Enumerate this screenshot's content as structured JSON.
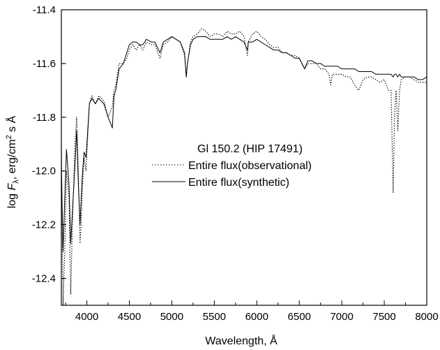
{
  "chart_data": {
    "type": "line",
    "title": "",
    "xlabel": "Wavelength, Å",
    "ylabel_parts": [
      "log ",
      "F",
      "λ",
      ", erg/cm",
      "2",
      " s Å"
    ],
    "xlim": [
      3700,
      8000
    ],
    "ylim": [
      -12.5,
      -11.4
    ],
    "x_ticks": [
      4000,
      4500,
      5000,
      5500,
      6000,
      6500,
      7000,
      7500,
      8000
    ],
    "y_ticks": [
      -11.4,
      -11.6,
      -11.8,
      -12.0,
      -12.2,
      -12.4
    ],
    "x_tick_labels": [
      "4000",
      "4500",
      "5000",
      "5500",
      "6000",
      "6500",
      "7000",
      "7500",
      "8000"
    ],
    "y_tick_labels": [
      "-11.4",
      "-11.6",
      "-11.8",
      "-12.0",
      "-12.2",
      "-12.4"
    ],
    "legend": {
      "heading": "Gl 150.2 (HIP 17491)",
      "placement": "center"
    },
    "series": [
      {
        "name": "Entire flux(observational)",
        "style": "dotted",
        "x": [
          3700,
          3720,
          3740,
          3760,
          3790,
          3810,
          3830,
          3860,
          3880,
          3900,
          3920,
          3933,
          3950,
          3968,
          3990,
          4030,
          4060,
          4100,
          4140,
          4200,
          4250,
          4300,
          4320,
          4340,
          4380,
          4430,
          4470,
          4500,
          4540,
          4580,
          4620,
          4660,
          4700,
          4760,
          4800,
          4861,
          4900,
          4950,
          5000,
          5050,
          5100,
          5150,
          5170,
          5184,
          5220,
          5250,
          5300,
          5350,
          5400,
          5450,
          5500,
          5550,
          5600,
          5650,
          5700,
          5750,
          5800,
          5850,
          5890,
          5900,
          5950,
          6000,
          6050,
          6100,
          6150,
          6200,
          6250,
          6300,
          6350,
          6400,
          6450,
          6500,
          6563,
          6600,
          6650,
          6700,
          6750,
          6800,
          6850,
          6870,
          6890,
          6950,
          7000,
          7050,
          7100,
          7150,
          7200,
          7250,
          7300,
          7350,
          7400,
          7450,
          7500,
          7550,
          7580,
          7605,
          7620,
          7640,
          7660,
          7680,
          7700,
          7750,
          7800,
          7850,
          7900,
          7950,
          8000
        ],
        "y": [
          -11.9,
          -12.5,
          -12.3,
          -12.0,
          -12.1,
          -12.46,
          -12.2,
          -11.9,
          -11.8,
          -12.0,
          -12.27,
          -12.2,
          -12.05,
          -11.95,
          -12.0,
          -11.75,
          -11.72,
          -11.75,
          -11.72,
          -11.74,
          -11.8,
          -11.76,
          -11.7,
          -11.68,
          -11.6,
          -11.6,
          -11.58,
          -11.55,
          -11.53,
          -11.55,
          -11.53,
          -11.55,
          -11.52,
          -11.53,
          -11.53,
          -11.58,
          -11.53,
          -11.52,
          -11.5,
          -11.51,
          -11.52,
          -11.57,
          -11.65,
          -11.6,
          -11.52,
          -11.5,
          -11.49,
          -11.47,
          -11.48,
          -11.5,
          -11.49,
          -11.49,
          -11.5,
          -11.48,
          -11.49,
          -11.49,
          -11.48,
          -11.5,
          -11.57,
          -11.52,
          -11.49,
          -11.48,
          -11.5,
          -11.51,
          -11.53,
          -11.54,
          -11.54,
          -11.56,
          -11.56,
          -11.57,
          -11.57,
          -11.58,
          -11.62,
          -11.6,
          -11.6,
          -11.6,
          -11.62,
          -11.62,
          -11.64,
          -11.68,
          -11.64,
          -11.64,
          -11.64,
          -11.65,
          -11.65,
          -11.68,
          -11.7,
          -11.66,
          -11.65,
          -11.65,
          -11.66,
          -11.67,
          -11.66,
          -11.7,
          -11.7,
          -12.08,
          -11.8,
          -11.7,
          -11.85,
          -11.7,
          -11.66,
          -11.65,
          -11.65,
          -11.66,
          -11.67,
          -11.67,
          -11.67
        ]
      },
      {
        "name": "Entire flux(synthetic)",
        "style": "solid",
        "x": [
          3700,
          3720,
          3740,
          3760,
          3790,
          3810,
          3830,
          3860,
          3880,
          3900,
          3920,
          3933,
          3950,
          3968,
          3990,
          4030,
          4060,
          4100,
          4140,
          4200,
          4250,
          4300,
          4320,
          4340,
          4380,
          4430,
          4470,
          4500,
          4540,
          4580,
          4620,
          4660,
          4700,
          4760,
          4800,
          4861,
          4900,
          4950,
          5000,
          5050,
          5100,
          5150,
          5170,
          5184,
          5220,
          5250,
          5300,
          5350,
          5400,
          5450,
          5500,
          5550,
          5600,
          5650,
          5700,
          5750,
          5800,
          5850,
          5890,
          5900,
          5950,
          6000,
          6050,
          6100,
          6150,
          6200,
          6250,
          6300,
          6350,
          6400,
          6450,
          6500,
          6563,
          6600,
          6650,
          6700,
          6750,
          6800,
          6850,
          6870,
          6890,
          6950,
          7000,
          7050,
          7100,
          7150,
          7200,
          7250,
          7300,
          7350,
          7400,
          7450,
          7500,
          7550,
          7580,
          7605,
          7620,
          7640,
          7660,
          7680,
          7700,
          7750,
          7800,
          7850,
          7900,
          7950,
          8000
        ],
        "y": [
          -11.98,
          -12.3,
          -12.1,
          -11.92,
          -12.05,
          -12.27,
          -12.15,
          -11.98,
          -11.85,
          -12.05,
          -12.2,
          -12.1,
          -12.0,
          -11.93,
          -11.95,
          -11.75,
          -11.73,
          -11.75,
          -11.73,
          -11.75,
          -11.8,
          -11.84,
          -11.72,
          -11.7,
          -11.62,
          -11.6,
          -11.56,
          -11.53,
          -11.52,
          -11.52,
          -11.53,
          -11.53,
          -11.51,
          -11.52,
          -11.52,
          -11.56,
          -11.52,
          -11.51,
          -11.5,
          -11.51,
          -11.52,
          -11.56,
          -11.65,
          -11.6,
          -11.53,
          -11.51,
          -11.5,
          -11.5,
          -11.5,
          -11.51,
          -11.51,
          -11.51,
          -11.51,
          -11.5,
          -11.51,
          -11.5,
          -11.51,
          -11.52,
          -11.55,
          -11.52,
          -11.52,
          -11.51,
          -11.52,
          -11.53,
          -11.54,
          -11.55,
          -11.55,
          -11.56,
          -11.56,
          -11.57,
          -11.58,
          -11.58,
          -11.62,
          -11.59,
          -11.59,
          -11.6,
          -11.6,
          -11.61,
          -11.61,
          -11.61,
          -11.61,
          -11.61,
          -11.62,
          -11.62,
          -11.62,
          -11.62,
          -11.63,
          -11.63,
          -11.63,
          -11.63,
          -11.64,
          -11.64,
          -11.64,
          -11.64,
          -11.64,
          -11.65,
          -11.64,
          -11.64,
          -11.65,
          -11.64,
          -11.65,
          -11.65,
          -11.65,
          -11.65,
          -11.66,
          -11.66,
          -11.65
        ]
      }
    ]
  }
}
